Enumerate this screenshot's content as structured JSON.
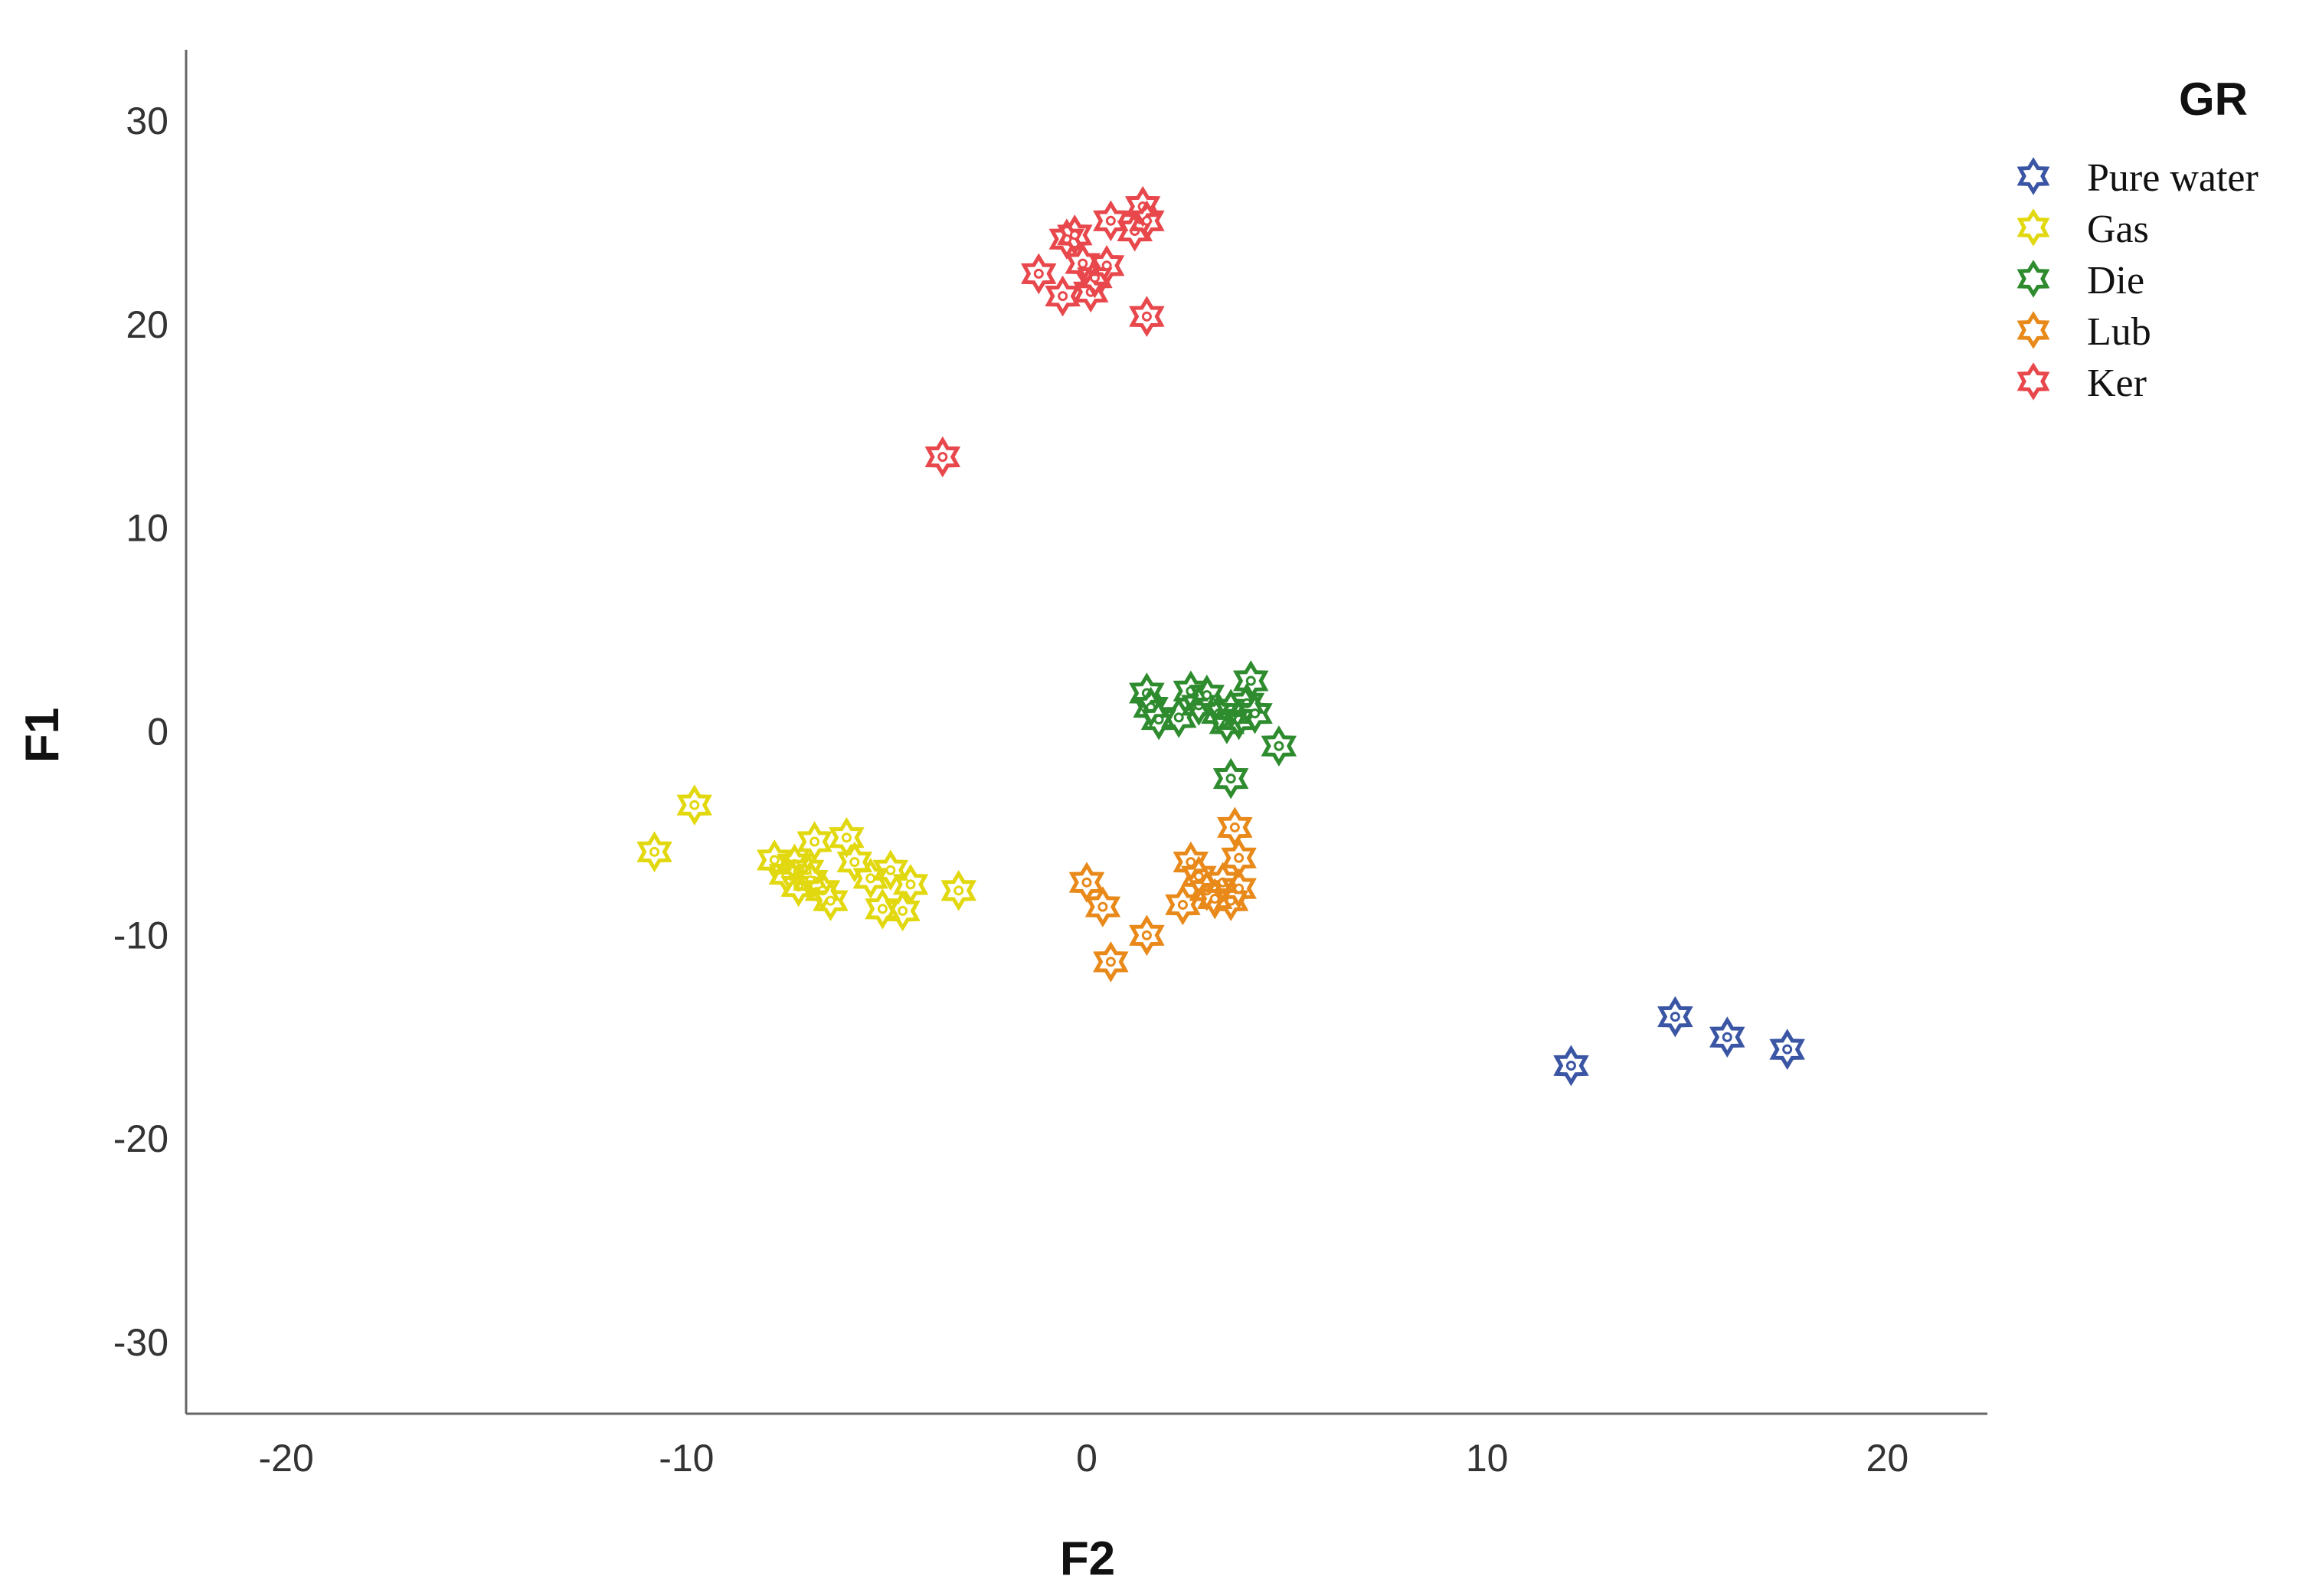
{
  "chart_data": {
    "type": "scatter",
    "title": "",
    "xlabel": "F2",
    "ylabel": "F1",
    "xlim": [
      -22.5,
      22.5
    ],
    "ylim": [
      -33.5,
      33.5
    ],
    "xticks": [
      -20,
      -10,
      0,
      10,
      20
    ],
    "yticks": [
      30,
      20,
      10,
      0,
      -10,
      -20,
      -30
    ],
    "grid": false,
    "marker": "star-outline",
    "legend": {
      "title": "GR",
      "position": "top-right"
    },
    "series": [
      {
        "name": "Pure water",
        "color": "#3a55a4",
        "points": [
          [
            12.1,
            -16.4
          ],
          [
            14.7,
            -14.0
          ],
          [
            16.0,
            -15.0
          ],
          [
            17.5,
            -15.6
          ]
        ]
      },
      {
        "name": "Gas",
        "color": "#e2d80f",
        "points": [
          [
            -10.8,
            -5.9
          ],
          [
            -9.8,
            -3.6
          ],
          [
            -7.8,
            -6.3
          ],
          [
            -7.5,
            -7.0
          ],
          [
            -7.3,
            -6.5
          ],
          [
            -7.2,
            -7.6
          ],
          [
            -7.0,
            -6.8
          ],
          [
            -6.9,
            -7.3
          ],
          [
            -6.8,
            -5.4
          ],
          [
            -6.6,
            -7.8
          ],
          [
            -6.4,
            -8.3
          ],
          [
            -6.0,
            -5.2
          ],
          [
            -5.8,
            -6.4
          ],
          [
            -5.4,
            -7.2
          ],
          [
            -5.1,
            -8.7
          ],
          [
            -4.9,
            -6.8
          ],
          [
            -4.6,
            -8.8
          ],
          [
            -4.4,
            -7.5
          ],
          [
            -3.2,
            -7.8
          ]
        ]
      },
      {
        "name": "Die",
        "color": "#2e8b2e",
        "points": [
          [
            1.5,
            1.9
          ],
          [
            1.6,
            1.2
          ],
          [
            1.8,
            0.6
          ],
          [
            2.3,
            0.7
          ],
          [
            2.6,
            2.0
          ],
          [
            2.8,
            1.3
          ],
          [
            3.0,
            1.8
          ],
          [
            3.3,
            0.9
          ],
          [
            3.5,
            0.4
          ],
          [
            3.6,
            1.1
          ],
          [
            3.8,
            0.6
          ],
          [
            4.0,
            1.4
          ],
          [
            4.1,
            2.5
          ],
          [
            4.2,
            0.9
          ],
          [
            4.8,
            -0.7
          ],
          [
            3.6,
            -2.3
          ]
        ]
      },
      {
        "name": "Lub",
        "color": "#e8891a",
        "points": [
          [
            0.0,
            -7.4
          ],
          [
            0.4,
            -8.6
          ],
          [
            0.6,
            -11.3
          ],
          [
            1.5,
            -10.0
          ],
          [
            2.4,
            -8.5
          ],
          [
            2.6,
            -6.4
          ],
          [
            2.8,
            -7.1
          ],
          [
            3.0,
            -7.8
          ],
          [
            3.2,
            -8.2
          ],
          [
            3.4,
            -7.4
          ],
          [
            3.6,
            -8.3
          ],
          [
            3.8,
            -6.2
          ],
          [
            3.8,
            -7.7
          ],
          [
            3.7,
            -4.7
          ]
        ]
      },
      {
        "name": "Ker",
        "color": "#e8474c",
        "points": [
          [
            -3.6,
            13.5
          ],
          [
            -1.2,
            22.5
          ],
          [
            -0.6,
            21.4
          ],
          [
            -0.5,
            24.2
          ],
          [
            -0.3,
            24.4
          ],
          [
            -0.1,
            23.0
          ],
          [
            0.1,
            21.6
          ],
          [
            0.2,
            22.3
          ],
          [
            0.5,
            22.9
          ],
          [
            0.6,
            25.1
          ],
          [
            1.2,
            24.6
          ],
          [
            1.4,
            25.8
          ],
          [
            1.5,
            25.1
          ],
          [
            1.5,
            20.4
          ]
        ]
      }
    ]
  }
}
